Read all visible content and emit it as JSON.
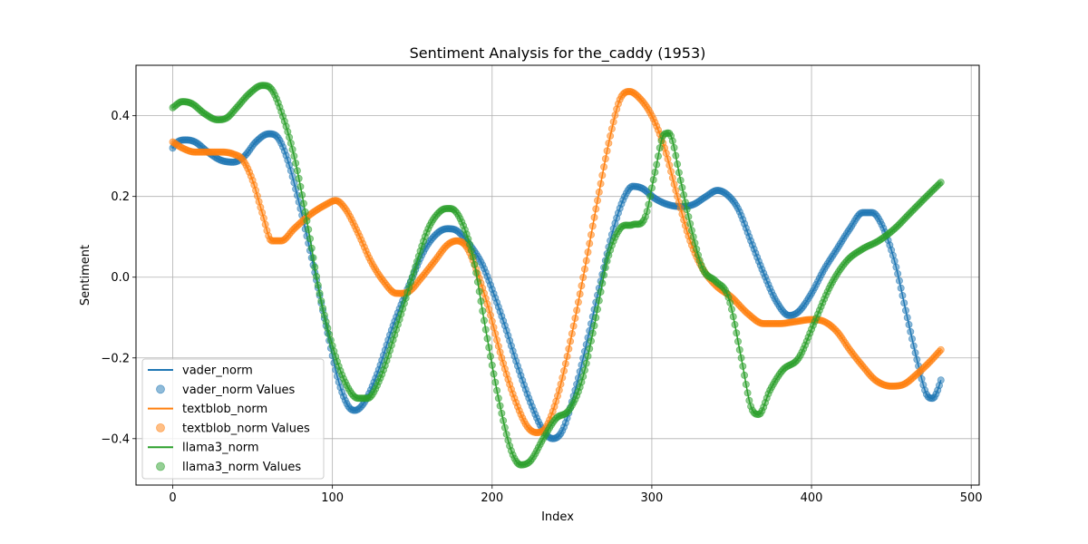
{
  "chart_data": {
    "type": "line",
    "title": "Sentiment Analysis for the_caddy (1953)",
    "xlabel": "Index",
    "ylabel": "Sentiment",
    "xlim": [
      -23,
      505
    ],
    "ylim": [
      -0.515,
      0.525
    ],
    "xticks": [
      0,
      100,
      200,
      300,
      400,
      500
    ],
    "yticks": [
      -0.4,
      -0.2,
      0.0,
      0.2,
      0.4
    ],
    "xtick_labels": [
      "0",
      "100",
      "200",
      "300",
      "400",
      "500"
    ],
    "ytick_labels": [
      "−0.4",
      "−0.2",
      "0.0",
      "0.2",
      "0.4"
    ],
    "grid": true,
    "legend_position": "lower-left",
    "n_points": 482,
    "series": [
      {
        "name": "vader_norm",
        "scatter_name": "vader_norm Values",
        "color": "#1f77b4",
        "keypoints": [
          [
            0,
            0.32
          ],
          [
            3,
            0.335
          ],
          [
            8,
            0.34
          ],
          [
            14,
            0.335
          ],
          [
            22,
            0.31
          ],
          [
            30,
            0.29
          ],
          [
            38,
            0.285
          ],
          [
            45,
            0.3
          ],
          [
            52,
            0.335
          ],
          [
            60,
            0.355
          ],
          [
            66,
            0.345
          ],
          [
            72,
            0.29
          ],
          [
            80,
            0.17
          ],
          [
            88,
            0.03
          ],
          [
            96,
            -0.12
          ],
          [
            104,
            -0.26
          ],
          [
            110,
            -0.32
          ],
          [
            114,
            -0.33
          ],
          [
            120,
            -0.31
          ],
          [
            128,
            -0.24
          ],
          [
            138,
            -0.12
          ],
          [
            148,
            -0.02
          ],
          [
            158,
            0.07
          ],
          [
            166,
            0.11
          ],
          [
            172,
            0.12
          ],
          [
            178,
            0.115
          ],
          [
            186,
            0.08
          ],
          [
            194,
            0.03
          ],
          [
            200,
            -0.03
          ],
          [
            208,
            -0.12
          ],
          [
            216,
            -0.22
          ],
          [
            224,
            -0.31
          ],
          [
            232,
            -0.38
          ],
          [
            238,
            -0.4
          ],
          [
            244,
            -0.38
          ],
          [
            252,
            -0.28
          ],
          [
            260,
            -0.15
          ],
          [
            268,
            -0.01
          ],
          [
            276,
            0.12
          ],
          [
            283,
            0.2
          ],
          [
            288,
            0.225
          ],
          [
            294,
            0.22
          ],
          [
            302,
            0.195
          ],
          [
            310,
            0.18
          ],
          [
            318,
            0.175
          ],
          [
            326,
            0.18
          ],
          [
            334,
            0.2
          ],
          [
            341,
            0.215
          ],
          [
            347,
            0.205
          ],
          [
            354,
            0.17
          ],
          [
            362,
            0.09
          ],
          [
            370,
            0.01
          ],
          [
            378,
            -0.06
          ],
          [
            386,
            -0.095
          ],
          [
            392,
            -0.085
          ],
          [
            400,
            -0.04
          ],
          [
            408,
            0.02
          ],
          [
            416,
            0.07
          ],
          [
            424,
            0.12
          ],
          [
            432,
            0.16
          ],
          [
            438,
            0.16
          ],
          [
            444,
            0.13
          ],
          [
            452,
            0.04
          ],
          [
            460,
            -0.1
          ],
          [
            467,
            -0.22
          ],
          [
            472,
            -0.29
          ],
          [
            476,
            -0.3
          ],
          [
            479,
            -0.28
          ],
          [
            481,
            -0.255
          ]
        ]
      },
      {
        "name": "textblob_norm",
        "scatter_name": "textblob_norm Values",
        "color": "#ff7f0e",
        "keypoints": [
          [
            0,
            0.335
          ],
          [
            6,
            0.32
          ],
          [
            14,
            0.31
          ],
          [
            22,
            0.31
          ],
          [
            30,
            0.31
          ],
          [
            38,
            0.305
          ],
          [
            44,
            0.29
          ],
          [
            50,
            0.24
          ],
          [
            56,
            0.16
          ],
          [
            62,
            0.09
          ],
          [
            68,
            0.09
          ],
          [
            76,
            0.12
          ],
          [
            86,
            0.155
          ],
          [
            96,
            0.18
          ],
          [
            102,
            0.19
          ],
          [
            108,
            0.17
          ],
          [
            116,
            0.11
          ],
          [
            124,
            0.04
          ],
          [
            132,
            -0.01
          ],
          [
            140,
            -0.04
          ],
          [
            148,
            -0.035
          ],
          [
            156,
            0.0
          ],
          [
            164,
            0.04
          ],
          [
            172,
            0.08
          ],
          [
            178,
            0.09
          ],
          [
            184,
            0.075
          ],
          [
            190,
            0.02
          ],
          [
            198,
            -0.08
          ],
          [
            206,
            -0.2
          ],
          [
            214,
            -0.3
          ],
          [
            222,
            -0.37
          ],
          [
            228,
            -0.385
          ],
          [
            234,
            -0.37
          ],
          [
            242,
            -0.28
          ],
          [
            250,
            -0.14
          ],
          [
            258,
            0.02
          ],
          [
            266,
            0.19
          ],
          [
            274,
            0.35
          ],
          [
            280,
            0.44
          ],
          [
            286,
            0.46
          ],
          [
            292,
            0.445
          ],
          [
            300,
            0.4
          ],
          [
            308,
            0.32
          ],
          [
            316,
            0.2
          ],
          [
            324,
            0.09
          ],
          [
            332,
            0.02
          ],
          [
            340,
            -0.02
          ],
          [
            350,
            -0.05
          ],
          [
            360,
            -0.09
          ],
          [
            370,
            -0.115
          ],
          [
            380,
            -0.115
          ],
          [
            390,
            -0.11
          ],
          [
            400,
            -0.105
          ],
          [
            408,
            -0.11
          ],
          [
            416,
            -0.135
          ],
          [
            424,
            -0.18
          ],
          [
            432,
            -0.22
          ],
          [
            440,
            -0.255
          ],
          [
            450,
            -0.27
          ],
          [
            458,
            -0.265
          ],
          [
            466,
            -0.24
          ],
          [
            474,
            -0.21
          ],
          [
            481,
            -0.18
          ]
        ]
      },
      {
        "name": "llama3_norm",
        "scatter_name": "llama3_norm Values",
        "color": "#2ca02c",
        "keypoints": [
          [
            0,
            0.42
          ],
          [
            6,
            0.435
          ],
          [
            12,
            0.43
          ],
          [
            20,
            0.405
          ],
          [
            28,
            0.39
          ],
          [
            34,
            0.395
          ],
          [
            40,
            0.42
          ],
          [
            48,
            0.455
          ],
          [
            56,
            0.475
          ],
          [
            62,
            0.465
          ],
          [
            68,
            0.41
          ],
          [
            76,
            0.3
          ],
          [
            84,
            0.14
          ],
          [
            92,
            -0.04
          ],
          [
            100,
            -0.17
          ],
          [
            108,
            -0.26
          ],
          [
            116,
            -0.3
          ],
          [
            122,
            -0.3
          ],
          [
            130,
            -0.25
          ],
          [
            140,
            -0.13
          ],
          [
            150,
            0.0
          ],
          [
            160,
            0.12
          ],
          [
            168,
            0.165
          ],
          [
            174,
            0.17
          ],
          [
            180,
            0.145
          ],
          [
            188,
            0.05
          ],
          [
            196,
            -0.13
          ],
          [
            204,
            -0.3
          ],
          [
            212,
            -0.43
          ],
          [
            218,
            -0.465
          ],
          [
            224,
            -0.455
          ],
          [
            232,
            -0.4
          ],
          [
            240,
            -0.35
          ],
          [
            248,
            -0.33
          ],
          [
            256,
            -0.26
          ],
          [
            264,
            -0.12
          ],
          [
            272,
            0.04
          ],
          [
            280,
            0.12
          ],
          [
            288,
            0.13
          ],
          [
            296,
            0.15
          ],
          [
            302,
            0.26
          ],
          [
            308,
            0.355
          ],
          [
            312,
            0.35
          ],
          [
            318,
            0.24
          ],
          [
            326,
            0.1
          ],
          [
            332,
            0.02
          ],
          [
            340,
            -0.01
          ],
          [
            348,
            -0.05
          ],
          [
            356,
            -0.2
          ],
          [
            362,
            -0.32
          ],
          [
            367,
            -0.34
          ],
          [
            374,
            -0.28
          ],
          [
            382,
            -0.23
          ],
          [
            392,
            -0.2
          ],
          [
            402,
            -0.11
          ],
          [
            412,
            -0.02
          ],
          [
            422,
            0.04
          ],
          [
            432,
            0.07
          ],
          [
            442,
            0.09
          ],
          [
            452,
            0.12
          ],
          [
            462,
            0.16
          ],
          [
            472,
            0.2
          ],
          [
            481,
            0.235
          ]
        ]
      }
    ]
  }
}
